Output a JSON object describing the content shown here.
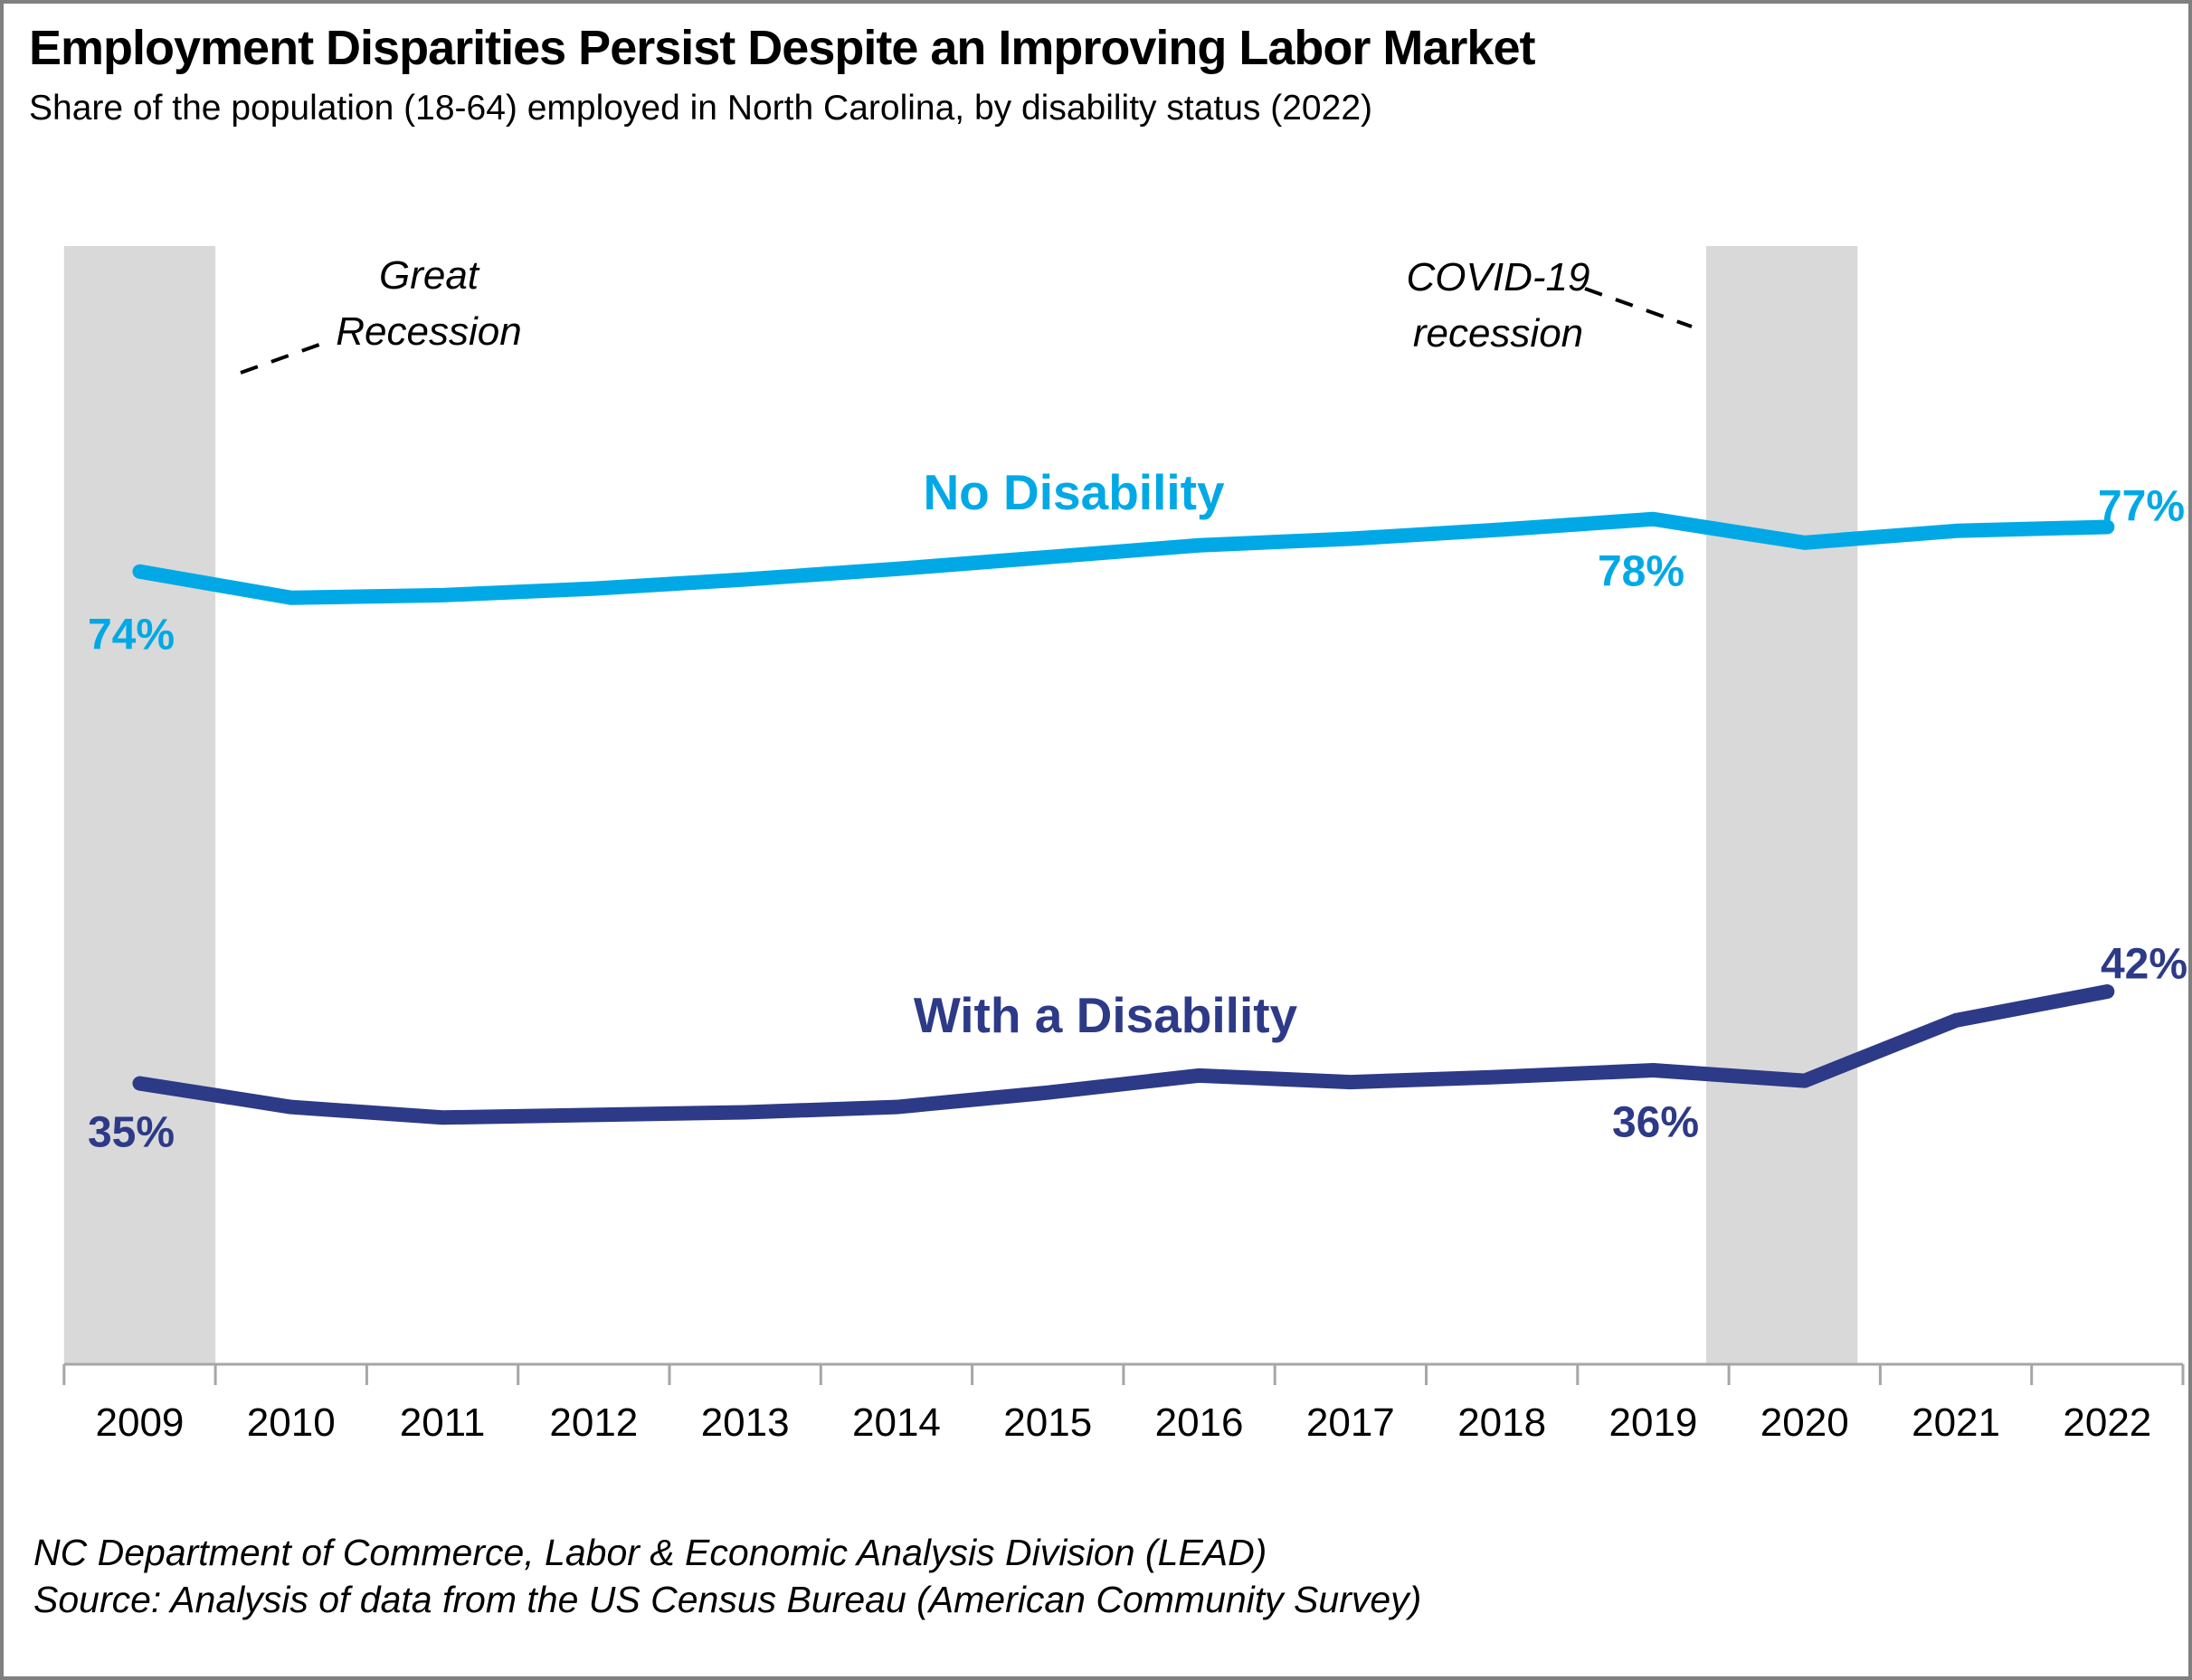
{
  "title": "Employment Disparities Persist Despite an Improving Labor Market",
  "subtitle": "Share of the population (18-64) employed in North Carolina, by disability status (2022)",
  "annotations": {
    "great_recession": {
      "line1": "Great",
      "line2": "Recession"
    },
    "covid_recession": {
      "line1": "COVID-19",
      "line2": "recession"
    }
  },
  "series_labels": {
    "no_disability": "No Disability",
    "with_disability": "With a Disability"
  },
  "point_labels": {
    "no_disability_2009": "74%",
    "no_disability_2019": "78%",
    "no_disability_2022": "77%",
    "with_disability_2009": "35%",
    "with_disability_2019": "36%",
    "with_disability_2022": "42%"
  },
  "source": {
    "line1": "NC Department of Commerce, Labor & Economic Analysis Division (LEAD)",
    "line2": "Source: Analysis of data from the US Census Bureau (American Community Survey)"
  },
  "colors": {
    "cyan": "#00A9E6",
    "navy": "#2D3A87",
    "band": "#D9D9D9",
    "axis": "#A6A6A6",
    "text": "#000000",
    "border": "#808080"
  },
  "chart_data": {
    "type": "line",
    "title": "Employment Disparities Persist Despite an Improving Labor Market",
    "subtitle": "Share of the population (18-64) employed in North Carolina, by disability status (2022)",
    "categories": [
      2009,
      2010,
      2011,
      2012,
      2013,
      2014,
      2015,
      2016,
      2017,
      2018,
      2019,
      2020,
      2021,
      2022
    ],
    "series": [
      {
        "name": "No Disability",
        "color": "#00A9E6",
        "values": [
          74,
          72,
          72.2,
          72.7,
          73.4,
          74.2,
          75.1,
          76,
          76.5,
          77.2,
          78,
          76.2,
          77.1,
          77.4
        ]
      },
      {
        "name": "With a Disability",
        "color": "#2D3A87",
        "values": [
          35,
          33.2,
          32.4,
          32.6,
          32.8,
          33.2,
          34.3,
          35.6,
          35.1,
          35.5,
          36,
          35.2,
          39.8,
          42
        ]
      }
    ],
    "xlabel": "",
    "ylabel": "",
    "ylim": [
      13.6,
      98.8
    ],
    "grid": false,
    "legend": "inline-labels",
    "recession_bands": [
      {
        "label": "Great Recession",
        "from": 2008.5,
        "to": 2009.5
      },
      {
        "label": "COVID-19 recession",
        "from": 2019.35,
        "to": 2020.35
      }
    ]
  }
}
